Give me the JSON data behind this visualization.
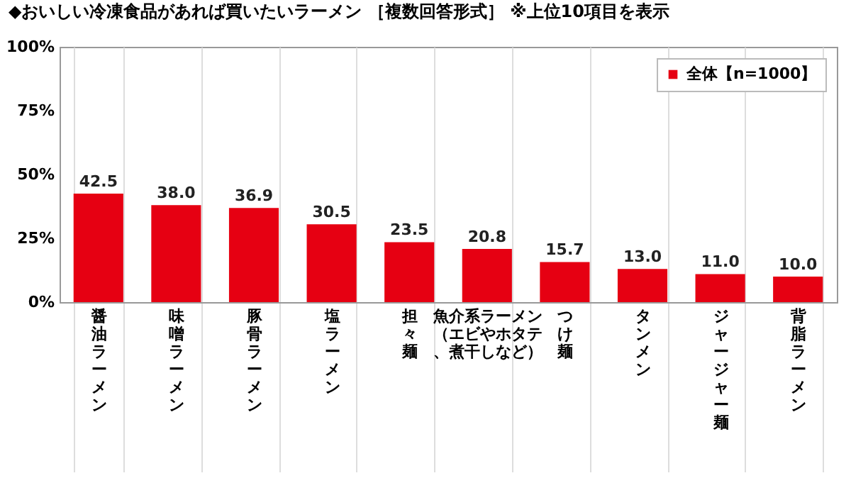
{
  "chart_data": {
    "type": "bar",
    "title": "◆おいしい冷凍食品があれば買いたいラーメン ［複数回答形式］ ※上位10項目を表示",
    "categories": [
      "醤油ラーメン",
      "味噌ラーメン",
      "豚骨ラーメン",
      "塩ラーメン",
      "担々麺",
      "魚介系ラーメン（エビやホタテ、煮干しなど）",
      "つけ麺",
      "タンメン",
      "ジャージャー麺",
      "背脂ラーメン"
    ],
    "series": [
      {
        "name": "全体【n=1000】",
        "color": "#e60012",
        "values": [
          42.5,
          38.0,
          36.9,
          30.5,
          23.5,
          20.8,
          15.7,
          13.0,
          11.0,
          10.0
        ],
        "value_labels": [
          "42.5",
          "38.0",
          "36.9",
          "30.5",
          "23.5",
          "20.8",
          "15.7",
          "13.0",
          "11.0",
          "10.0"
        ]
      }
    ],
    "ylim": [
      0,
      100
    ],
    "yticks": [
      {
        "value": 0,
        "label": "0%"
      },
      {
        "value": 25,
        "label": "25%"
      },
      {
        "value": 50,
        "label": "50%"
      },
      {
        "value": 75,
        "label": "75%"
      },
      {
        "value": 100,
        "label": "100%"
      }
    ],
    "grid": "x",
    "legend": "top right"
  }
}
